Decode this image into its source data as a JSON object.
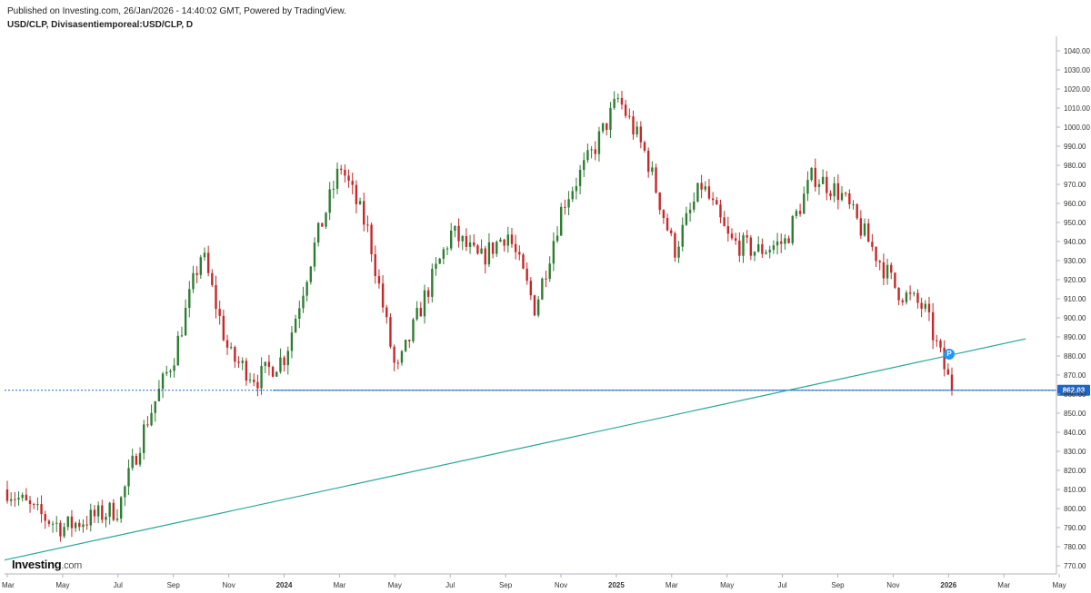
{
  "header": {
    "published": "Published on Investing.com, 26/Jan/2026 - 14:40:02 GMT, Powered by TradingView.",
    "symbol": "USD/CLP, Divisasentiemporeal:USD/CLP, D"
  },
  "logo": {
    "brand": "Investing",
    "domain": ".com"
  },
  "marker": {
    "label": "P"
  },
  "colors": {
    "up": "#2e7d32",
    "down": "#c62828",
    "trendline": "#26a69a",
    "hline": "#1e66c8",
    "price_badge": "#1e66c8",
    "marker": "#2196f3"
  },
  "chart_data": {
    "type": "line",
    "title": "USD/CLP, Divisasentiemporeal:USD/CLP, D",
    "ylim": [
      770,
      1040
    ],
    "yticks": [
      770,
      780,
      790,
      800,
      810,
      820,
      830,
      840,
      850,
      860,
      870,
      880,
      890,
      900,
      910,
      920,
      930,
      940,
      950,
      960,
      970,
      980,
      990,
      1000,
      1010,
      1020,
      1030,
      1040
    ],
    "ytick_labels": [
      "770.00",
      "780.00",
      "790.00",
      "800.00",
      "810.00",
      "820.00",
      "830.00",
      "840.00",
      "850.00",
      "860.00",
      "870.00",
      "880.00",
      "890.00",
      "900.00",
      "910.00",
      "920.00",
      "930.00",
      "940.00",
      "950.00",
      "960.00",
      "970.00",
      "980.00",
      "990.00",
      "1000.00",
      "1010.00",
      "1020.00",
      "1030.00",
      "1040.00"
    ],
    "xtick_labels": [
      "Mar",
      "May",
      "Jul",
      "Sep",
      "Nov",
      "2024",
      "Mar",
      "May",
      "Jul",
      "Sep",
      "Nov",
      "2025",
      "Mar",
      "May",
      "Jul",
      "Sep",
      "Nov",
      "2026",
      "Mar",
      "May"
    ],
    "x": [
      "2023-03",
      "2023-04",
      "2023-05",
      "2023-06",
      "2023-07",
      "2023-08",
      "2023-09",
      "2023-10",
      "2023-11",
      "2023-12",
      "2024-01",
      "2024-02",
      "2024-03",
      "2024-04",
      "2024-05",
      "2024-06",
      "2024-07",
      "2024-08",
      "2024-09",
      "2024-10",
      "2024-11",
      "2024-12",
      "2025-01",
      "2025-02",
      "2025-03",
      "2025-04",
      "2025-05",
      "2025-06",
      "2025-07",
      "2025-08",
      "2025-09",
      "2025-10",
      "2025-11",
      "2025-12",
      "2026-01"
    ],
    "series": [
      {
        "values": [
          810,
          798,
          790,
          795,
          800,
          845,
          880,
          935,
          880,
          868,
          880,
          935,
          980,
          945,
          870,
          910,
          945,
          930,
          945,
          905,
          960,
          985,
          1015,
          985,
          935,
          970,
          940,
          935,
          940,
          975,
          965,
          940,
          915,
          905,
          862.03
        ]
      }
    ],
    "last_price": "862.03",
    "horizontal_line": 862.03,
    "trendline": {
      "from": [
        "2023-03",
        773
      ],
      "to": [
        "2026-03",
        889
      ]
    },
    "grid": false
  }
}
